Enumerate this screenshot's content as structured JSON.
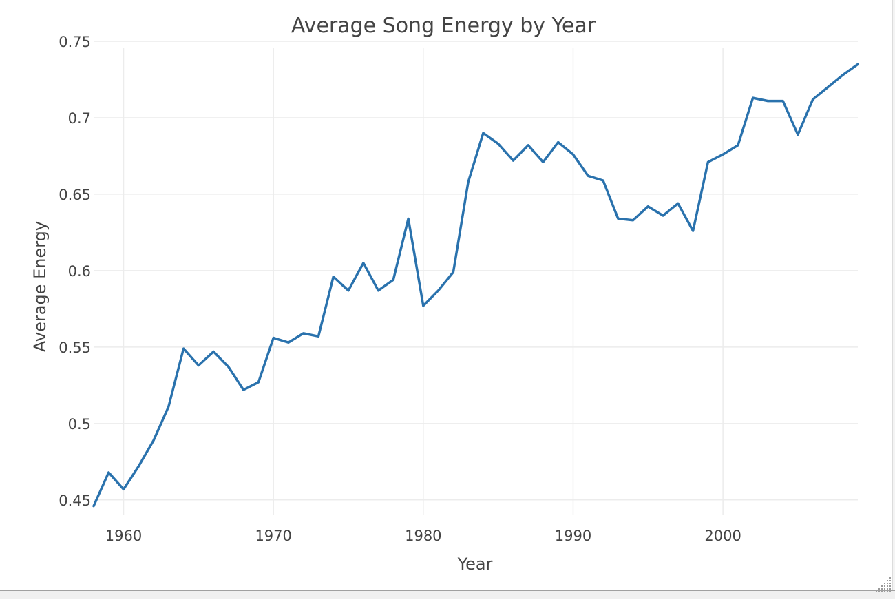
{
  "chart_data": {
    "type": "line",
    "title": "Average Song Energy by Year",
    "xlabel": "Year",
    "ylabel": "Average Energy",
    "xlim": [
      1958,
      2009
    ],
    "ylim": [
      0.44,
      0.75
    ],
    "x_ticks": [
      1960,
      1970,
      1980,
      1990,
      2000
    ],
    "y_ticks": [
      0.45,
      0.5,
      0.55,
      0.6,
      0.65,
      0.7,
      0.75
    ],
    "y_tick_labels": [
      "0.45",
      "0.5",
      "0.55",
      "0.6",
      "0.65",
      "0.7",
      "0.75"
    ],
    "grid": true,
    "line_color": "#2a72ad",
    "series": [
      {
        "x": [
          1958,
          1959,
          1960,
          1961,
          1962,
          1963,
          1964,
          1965,
          1966,
          1967,
          1968,
          1969,
          1970,
          1971,
          1972,
          1973,
          1974,
          1975,
          1976,
          1977,
          1978,
          1979,
          1980,
          1981,
          1982,
          1983,
          1984,
          1985,
          1986,
          1987,
          1988,
          1989,
          1990,
          1991,
          1992,
          1993,
          1994,
          1995,
          1996,
          1997,
          1998,
          1999,
          2000,
          2001,
          2002,
          2003,
          2004,
          2005,
          2006,
          2007,
          2008,
          2009
        ],
        "values": [
          0.446,
          0.468,
          0.457,
          0.472,
          0.489,
          0.511,
          0.549,
          0.538,
          0.547,
          0.537,
          0.522,
          0.527,
          0.556,
          0.553,
          0.559,
          0.557,
          0.596,
          0.587,
          0.605,
          0.587,
          0.594,
          0.634,
          0.577,
          0.587,
          0.599,
          0.658,
          0.69,
          0.683,
          0.672,
          0.682,
          0.671,
          0.684,
          0.676,
          0.662,
          0.659,
          0.634,
          0.633,
          0.642,
          0.636,
          0.644,
          0.626,
          0.671,
          0.676,
          0.682,
          0.713,
          0.711,
          0.711,
          0.689,
          0.712,
          0.72,
          0.728,
          0.735
        ]
      }
    ]
  }
}
